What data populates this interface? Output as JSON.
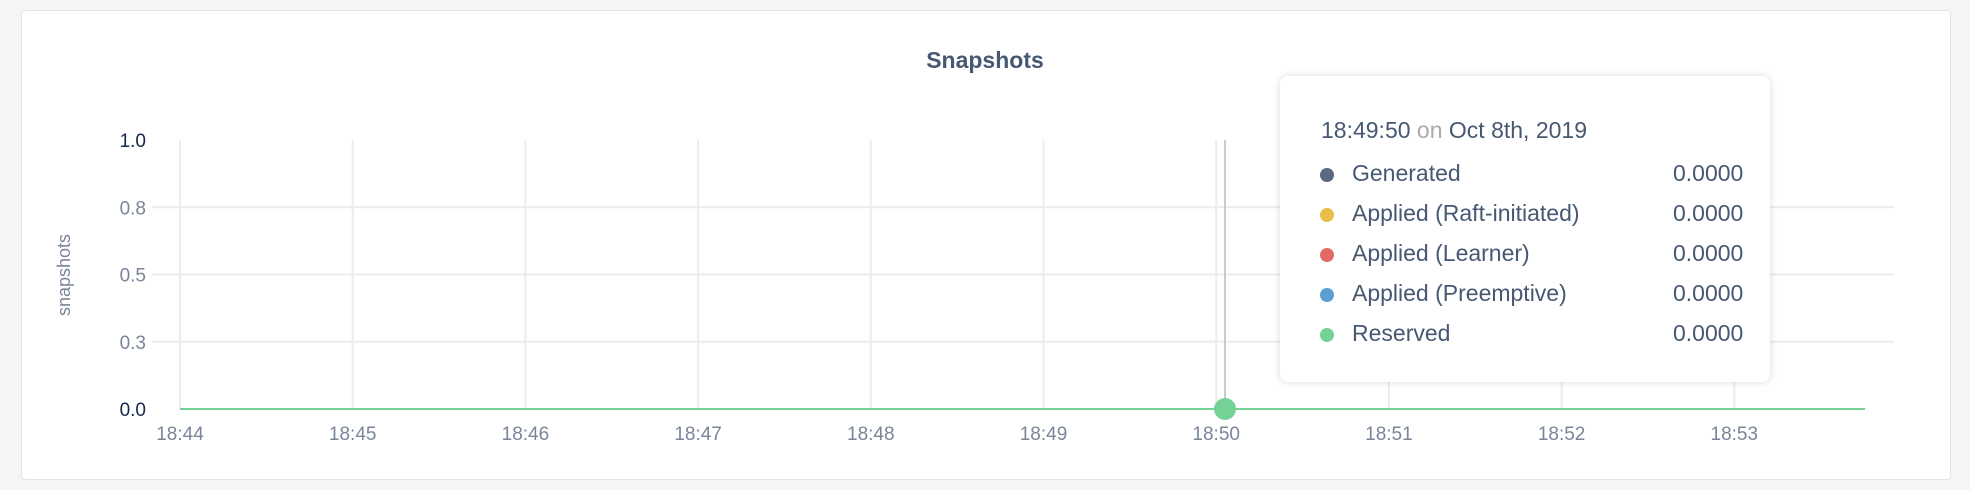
{
  "chart_data": {
    "type": "line",
    "title": "Snapshots",
    "ylabel": "snapshots",
    "xlabel": "",
    "ylim": [
      0,
      1.0
    ],
    "yticks": [
      "0.0",
      "0.3",
      "0.5",
      "0.8",
      "1.0"
    ],
    "ytick_values": [
      0,
      0.25,
      0.5,
      0.75,
      1.0
    ],
    "xticks": [
      "18:44",
      "18:45",
      "18:46",
      "18:47",
      "18:48",
      "18:49",
      "18:50",
      "18:51",
      "18:52",
      "18:53"
    ],
    "xrange": [
      "18:44",
      "18:53:45"
    ],
    "grid": true,
    "series": [
      {
        "name": "Generated",
        "color": "#5a6881",
        "values": [
          0,
          0
        ]
      },
      {
        "name": "Applied (Raft-initiated)",
        "color": "#ebbd4b",
        "values": [
          0,
          0
        ]
      },
      {
        "name": "Applied (Learner)",
        "color": "#e36b66",
        "values": [
          0,
          0
        ]
      },
      {
        "name": "Applied (Preemptive)",
        "color": "#5a9fd4",
        "values": [
          0,
          0
        ]
      },
      {
        "name": "Reserved",
        "color": "#74d296",
        "values": [
          0,
          0
        ]
      }
    ],
    "tooltip": {
      "time": "18:49:50",
      "on": "on",
      "date": "Oct 8th, 2019",
      "values": [
        "0.0000",
        "0.0000",
        "0.0000",
        "0.0000",
        "0.0000"
      ]
    }
  }
}
